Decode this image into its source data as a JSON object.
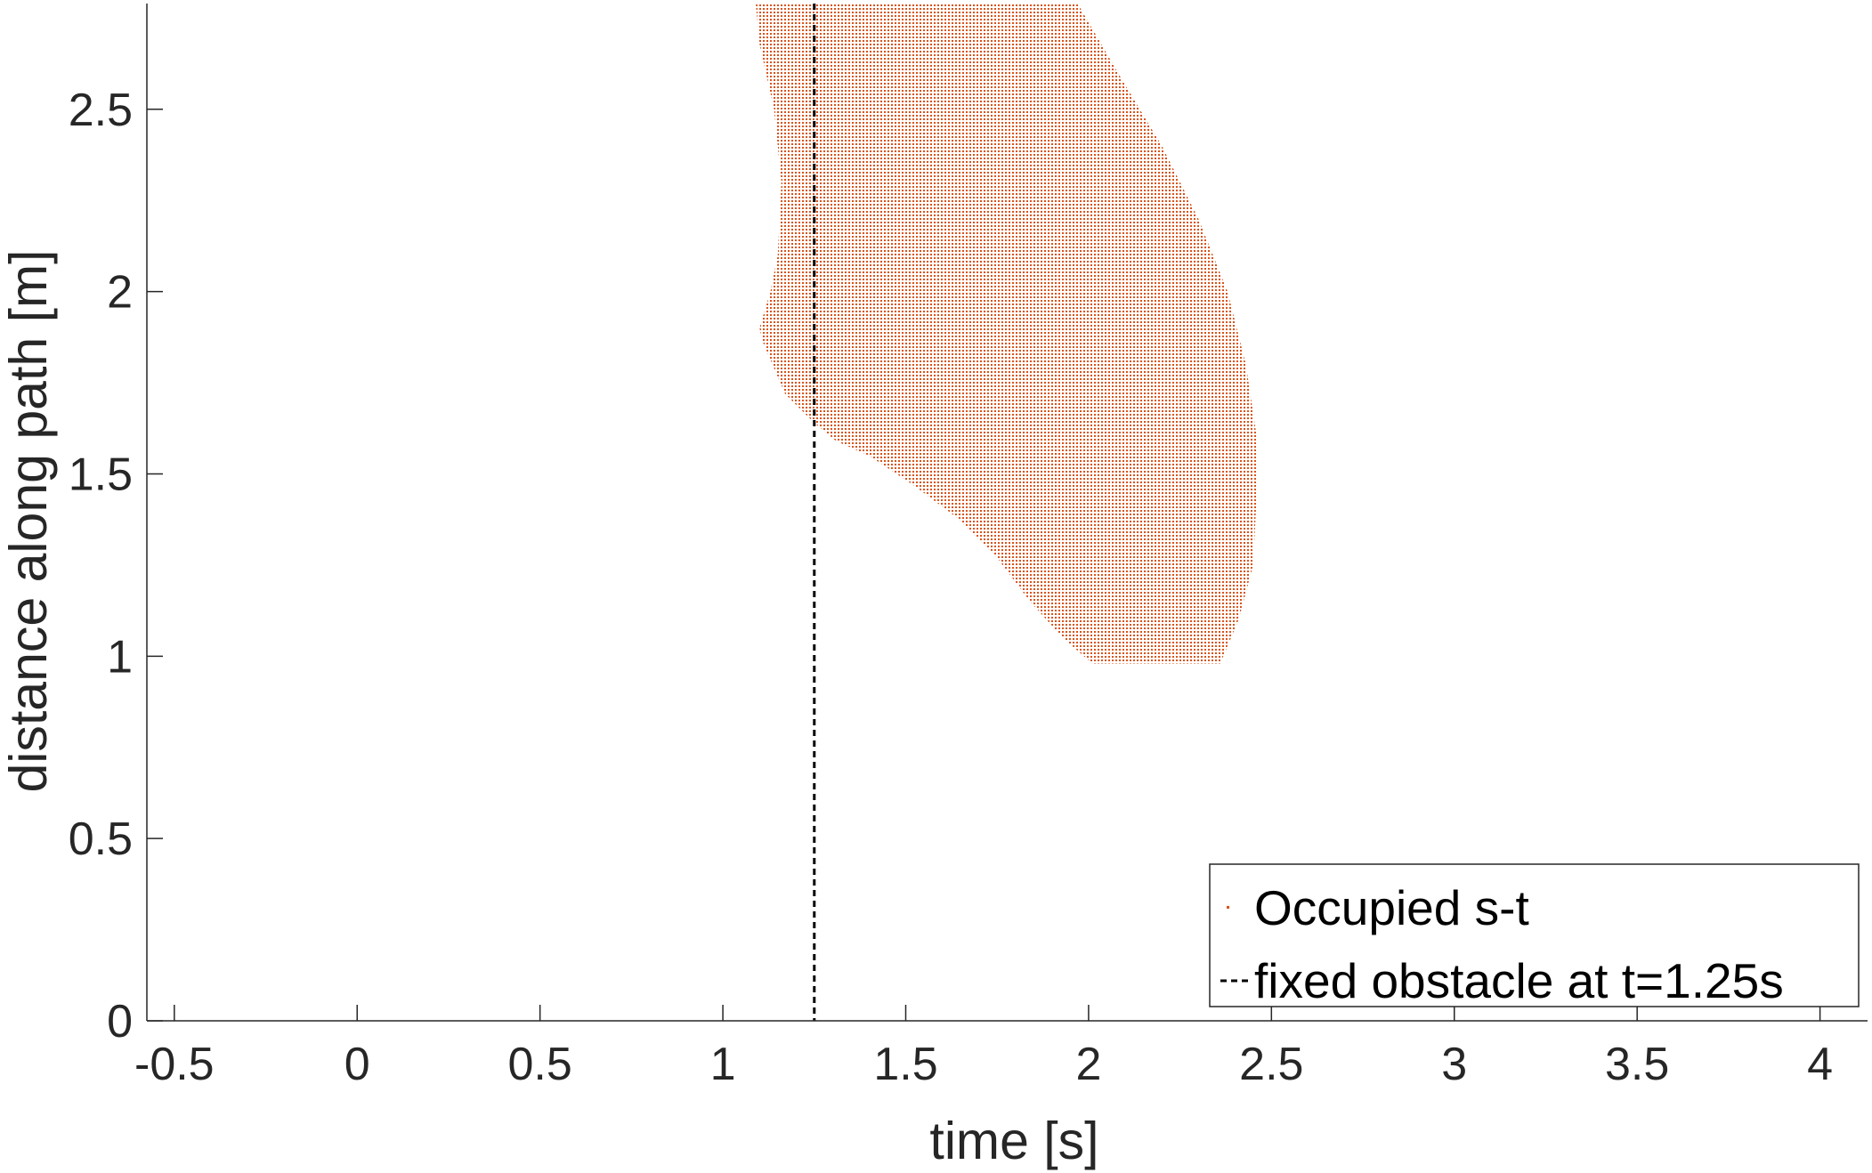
{
  "chart_data": {
    "type": "area",
    "xlabel": "time [s]",
    "ylabel": "distance along path [m]",
    "xlim": [
      -0.575,
      4.13
    ],
    "ylim": [
      0,
      2.79
    ],
    "xticks": [
      -0.5,
      0,
      0.5,
      1,
      1.5,
      2,
      2.5,
      3,
      3.5,
      4
    ],
    "xtick_labels": [
      "-0.5",
      "0",
      "0.5",
      "1",
      "1.5",
      "2",
      "2.5",
      "3",
      "3.5",
      "4"
    ],
    "yticks": [
      0,
      0.5,
      1,
      1.5,
      2,
      2.5
    ],
    "ytick_labels": [
      "0",
      "0.5",
      "1",
      "1.5",
      "2",
      "2.5"
    ],
    "grid": false,
    "legend_position": "bottom-right",
    "series": [
      {
        "name": "Occupied s-t",
        "style": "dotted-region",
        "color": "#D95319",
        "polygon": [
          [
            2.01,
            0.98
          ],
          [
            2.36,
            0.98
          ],
          [
            2.41,
            1.1
          ],
          [
            2.45,
            1.25
          ],
          [
            2.46,
            1.45
          ],
          [
            2.46,
            1.6
          ],
          [
            2.43,
            1.8
          ],
          [
            2.38,
            2.0
          ],
          [
            2.3,
            2.2
          ],
          [
            2.2,
            2.4
          ],
          [
            2.08,
            2.6
          ],
          [
            1.97,
            2.79
          ],
          [
            1.09,
            2.79
          ],
          [
            1.1,
            2.68
          ],
          [
            1.14,
            2.5
          ],
          [
            1.16,
            2.3
          ],
          [
            1.15,
            2.1
          ],
          [
            1.13,
            2.0
          ],
          [
            1.1,
            1.9
          ],
          [
            1.11,
            1.86
          ],
          [
            1.17,
            1.72
          ],
          [
            1.25,
            1.64
          ],
          [
            1.31,
            1.59
          ],
          [
            1.4,
            1.55
          ],
          [
            1.52,
            1.47
          ],
          [
            1.64,
            1.38
          ],
          [
            1.75,
            1.27
          ],
          [
            1.84,
            1.15
          ],
          [
            1.93,
            1.05
          ]
        ]
      },
      {
        "name": "fixed obstacle at t=1.25s",
        "style": "dashed-vertical-line",
        "color": "#000000",
        "x": 1.25
      }
    ]
  }
}
